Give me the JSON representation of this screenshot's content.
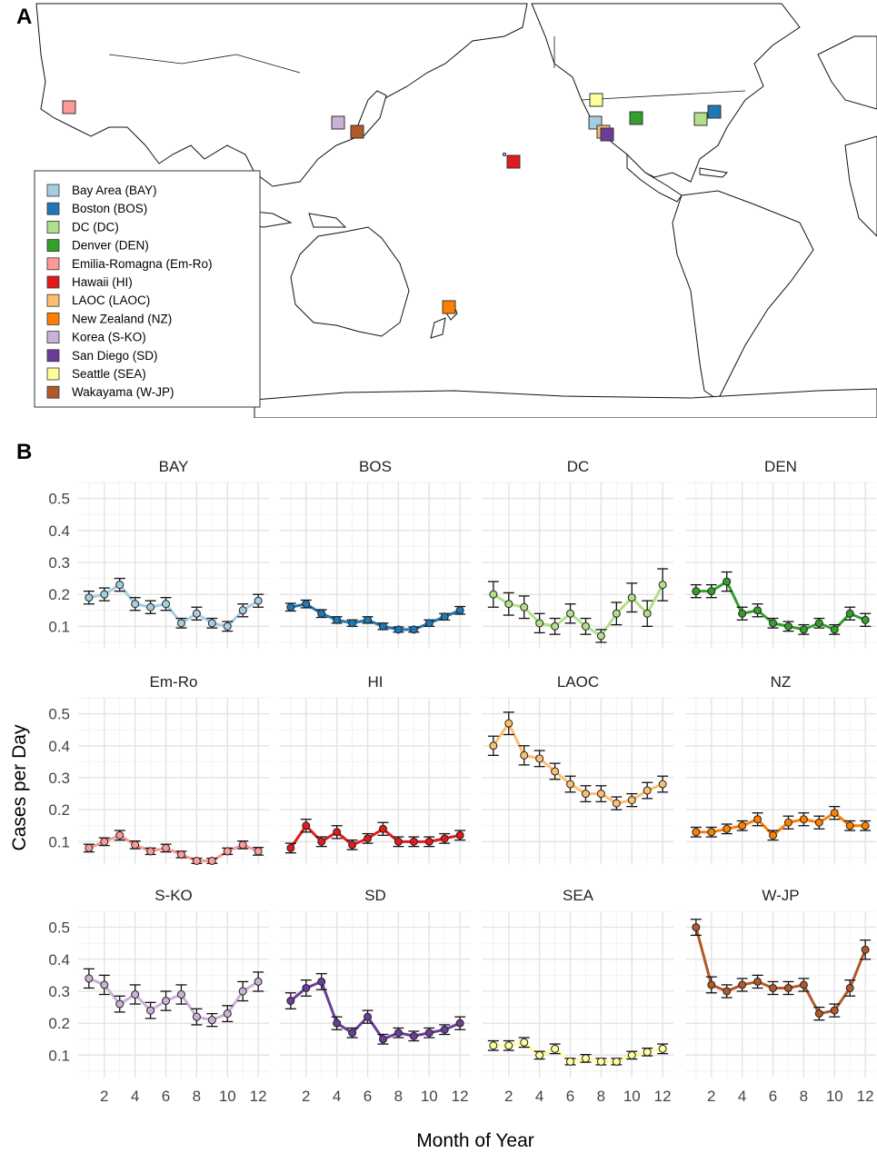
{
  "figure": {
    "panel_a_label": "A",
    "panel_b_label": "B"
  },
  "map": {
    "legend": [
      {
        "label": "Bay Area (BAY)",
        "color": "#a6cee3"
      },
      {
        "label": "Boston (BOS)",
        "color": "#1f78b4"
      },
      {
        "label": "DC (DC)",
        "color": "#b2df8a"
      },
      {
        "label": "Denver (DEN)",
        "color": "#33a02c"
      },
      {
        "label": "Emilia-Romagna (Em-Ro)",
        "color": "#fb9a99"
      },
      {
        "label": "Hawaii (HI)",
        "color": "#e31a1c"
      },
      {
        "label": "LAOC (LAOC)",
        "color": "#fdbf6f"
      },
      {
        "label": "New Zealand (NZ)",
        "color": "#ff7f00"
      },
      {
        "label": "Korea (S-KO)",
        "color": "#cab2d6"
      },
      {
        "label": "San Diego (SD)",
        "color": "#6a3d9a"
      },
      {
        "label": "Seattle (SEA)",
        "color": "#ffff99"
      },
      {
        "label": "Wakayama (W-JP)",
        "color": "#b15928"
      }
    ]
  },
  "chart_data": {
    "type": "line",
    "facets": [
      "BAY",
      "BOS",
      "DC",
      "DEN",
      "Em-Ro",
      "HI",
      "LAOC",
      "NZ",
      "S-KO",
      "SD",
      "SEA",
      "W-JP"
    ],
    "xlabel": "Month of Year",
    "ylabel": "Cases per Day",
    "x": [
      1,
      2,
      3,
      4,
      5,
      6,
      7,
      8,
      9,
      10,
      11,
      12
    ],
    "x_ticks": [
      2,
      4,
      6,
      8,
      10,
      12
    ],
    "y_ticks": [
      0.1,
      0.2,
      0.3,
      0.4,
      0.5
    ],
    "ylim": [
      0.03,
      0.55
    ],
    "grid": true,
    "series": [
      {
        "name": "BAY",
        "color": "#a6cee3",
        "values": [
          0.19,
          0.2,
          0.23,
          0.17,
          0.16,
          0.17,
          0.11,
          0.14,
          0.11,
          0.1,
          0.15,
          0.18
        ],
        "err": [
          0.02,
          0.02,
          0.02,
          0.02,
          0.02,
          0.02,
          0.015,
          0.02,
          0.015,
          0.015,
          0.02,
          0.02
        ]
      },
      {
        "name": "BOS",
        "color": "#1f78b4",
        "values": [
          0.16,
          0.17,
          0.14,
          0.12,
          0.11,
          0.12,
          0.1,
          0.09,
          0.09,
          0.11,
          0.13,
          0.15
        ],
        "err": [
          0.012,
          0.012,
          0.012,
          0.01,
          0.01,
          0.01,
          0.01,
          0.008,
          0.008,
          0.01,
          0.01,
          0.012
        ]
      },
      {
        "name": "DC",
        "color": "#b2df8a",
        "values": [
          0.2,
          0.17,
          0.16,
          0.11,
          0.1,
          0.14,
          0.1,
          0.07,
          0.14,
          0.19,
          0.14,
          0.23
        ],
        "err": [
          0.04,
          0.035,
          0.035,
          0.03,
          0.025,
          0.03,
          0.025,
          0.02,
          0.035,
          0.045,
          0.04,
          0.05
        ]
      },
      {
        "name": "DEN",
        "color": "#33a02c",
        "values": [
          0.21,
          0.21,
          0.24,
          0.14,
          0.15,
          0.11,
          0.1,
          0.09,
          0.11,
          0.09,
          0.14,
          0.12
        ],
        "err": [
          0.02,
          0.02,
          0.03,
          0.02,
          0.02,
          0.015,
          0.015,
          0.015,
          0.015,
          0.015,
          0.02,
          0.02
        ]
      },
      {
        "name": "Em-Ro",
        "color": "#fb9a99",
        "values": [
          0.08,
          0.1,
          0.12,
          0.09,
          0.07,
          0.08,
          0.06,
          0.04,
          0.04,
          0.07,
          0.09,
          0.07
        ],
        "err": [
          0.012,
          0.012,
          0.015,
          0.012,
          0.01,
          0.012,
          0.01,
          0.008,
          0.008,
          0.01,
          0.012,
          0.012
        ]
      },
      {
        "name": "HI",
        "color": "#e31a1c",
        "values": [
          0.08,
          0.15,
          0.1,
          0.13,
          0.09,
          0.11,
          0.14,
          0.1,
          0.1,
          0.1,
          0.11,
          0.12
        ],
        "err": [
          0.015,
          0.02,
          0.015,
          0.02,
          0.015,
          0.015,
          0.02,
          0.015,
          0.015,
          0.015,
          0.015,
          0.015
        ]
      },
      {
        "name": "LAOC",
        "color": "#fdbf6f",
        "values": [
          0.4,
          0.47,
          0.37,
          0.36,
          0.32,
          0.28,
          0.25,
          0.25,
          0.22,
          0.23,
          0.26,
          0.28
        ],
        "err": [
          0.03,
          0.035,
          0.03,
          0.025,
          0.025,
          0.025,
          0.025,
          0.025,
          0.02,
          0.02,
          0.025,
          0.025
        ]
      },
      {
        "name": "NZ",
        "color": "#ff7f00",
        "values": [
          0.13,
          0.13,
          0.14,
          0.15,
          0.17,
          0.12,
          0.16,
          0.17,
          0.16,
          0.19,
          0.15,
          0.15
        ],
        "err": [
          0.015,
          0.015,
          0.015,
          0.015,
          0.02,
          0.015,
          0.02,
          0.02,
          0.02,
          0.02,
          0.015,
          0.015
        ]
      },
      {
        "name": "S-KO",
        "color": "#cab2d6",
        "values": [
          0.34,
          0.32,
          0.26,
          0.29,
          0.24,
          0.27,
          0.29,
          0.22,
          0.21,
          0.23,
          0.3,
          0.33
        ],
        "err": [
          0.03,
          0.03,
          0.025,
          0.03,
          0.025,
          0.03,
          0.03,
          0.025,
          0.02,
          0.025,
          0.03,
          0.03
        ]
      },
      {
        "name": "SD",
        "color": "#6a3d9a",
        "values": [
          0.27,
          0.31,
          0.33,
          0.2,
          0.17,
          0.22,
          0.15,
          0.17,
          0.16,
          0.17,
          0.18,
          0.2
        ],
        "err": [
          0.025,
          0.025,
          0.025,
          0.02,
          0.015,
          0.02,
          0.015,
          0.015,
          0.015,
          0.015,
          0.015,
          0.02
        ]
      },
      {
        "name": "SEA",
        "color": "#ffff99",
        "values": [
          0.13,
          0.13,
          0.14,
          0.1,
          0.12,
          0.08,
          0.09,
          0.08,
          0.08,
          0.1,
          0.11,
          0.12
        ],
        "err": [
          0.015,
          0.015,
          0.015,
          0.012,
          0.015,
          0.01,
          0.012,
          0.01,
          0.01,
          0.012,
          0.012,
          0.015
        ]
      },
      {
        "name": "W-JP",
        "color": "#b15928",
        "values": [
          0.5,
          0.32,
          0.3,
          0.32,
          0.33,
          0.31,
          0.31,
          0.32,
          0.23,
          0.24,
          0.31,
          0.43
        ],
        "err": [
          0.025,
          0.025,
          0.02,
          0.02,
          0.02,
          0.02,
          0.02,
          0.02,
          0.02,
          0.02,
          0.025,
          0.03
        ]
      }
    ]
  }
}
